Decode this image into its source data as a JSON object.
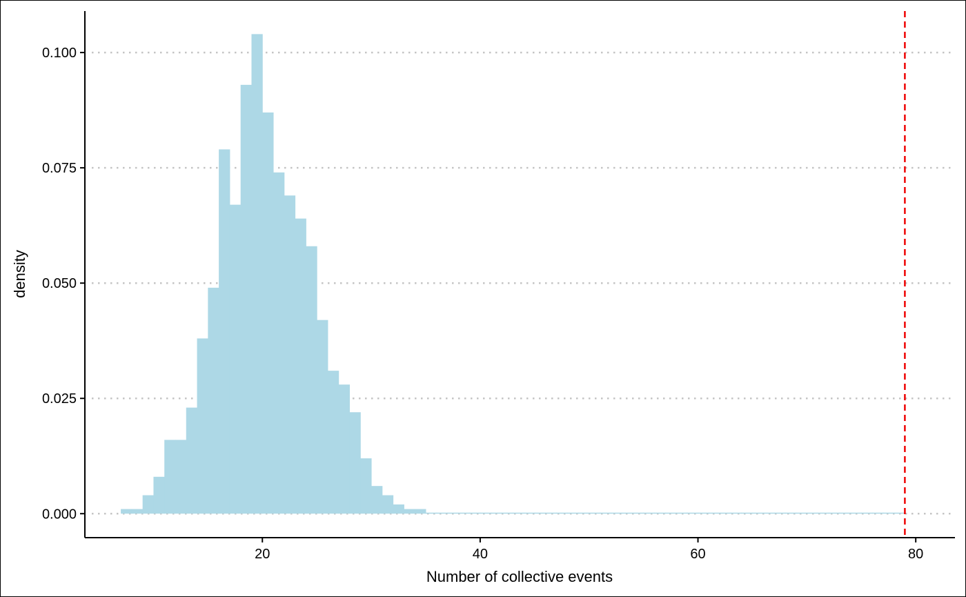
{
  "chart_data": {
    "type": "bar",
    "subtype": "histogram",
    "title": "",
    "xlabel": "Number of collective events",
    "ylabel": "density",
    "xlim": [
      3.7,
      83.6
    ],
    "ylim": [
      -0.0052,
      0.109
    ],
    "x_ticks": [
      20,
      40,
      60,
      80
    ],
    "x_tick_labels": [
      "20",
      "40",
      "60",
      "80"
    ],
    "y_ticks": [
      0,
      0.025,
      0.05,
      0.075,
      0.1
    ],
    "y_tick_labels": [
      "0.000",
      "0.025",
      "0.050",
      "0.075",
      "0.100"
    ],
    "grid": "horizontal dotted",
    "legend": "none",
    "bin_width": 1,
    "bins_start": [
      7,
      8,
      9,
      10,
      11,
      12,
      13,
      14,
      15,
      16,
      17,
      18,
      19,
      20,
      21,
      22,
      23,
      24,
      25,
      26,
      27,
      28,
      29,
      30,
      31,
      32,
      33,
      34,
      35,
      36,
      37,
      38,
      39,
      40,
      41,
      42,
      43,
      44,
      45,
      46,
      47,
      48,
      49,
      50,
      51,
      52,
      53,
      54,
      55,
      56,
      57,
      58,
      59,
      60,
      61,
      62,
      63,
      64,
      65,
      66,
      67,
      68,
      69,
      70,
      71,
      72,
      73,
      74,
      75,
      76,
      77,
      78
    ],
    "values": [
      0.001,
      0.001,
      0.004,
      0.008,
      0.016,
      0.016,
      0.023,
      0.038,
      0.049,
      0.079,
      0.067,
      0.093,
      0.104,
      0.087,
      0.074,
      0.069,
      0.064,
      0.058,
      0.042,
      0.031,
      0.028,
      0.022,
      0.012,
      0.006,
      0.004,
      0.002,
      0.001,
      0.001,
      0,
      0,
      0,
      0,
      0,
      0,
      0,
      0,
      0,
      0,
      0,
      0,
      0,
      0,
      0,
      0,
      0,
      0,
      0,
      0,
      0,
      0,
      0,
      0,
      0,
      0,
      0,
      0,
      0,
      0,
      0,
      0,
      0,
      0,
      0,
      0,
      0,
      0,
      0,
      0,
      0,
      0,
      0,
      0
    ],
    "reference_line": {
      "x": 79,
      "style": "dashed",
      "color": "#ee0000"
    },
    "colors": {
      "bars": "#add8e6",
      "grid": "#c4c4c4",
      "axis": "#000000"
    }
  }
}
